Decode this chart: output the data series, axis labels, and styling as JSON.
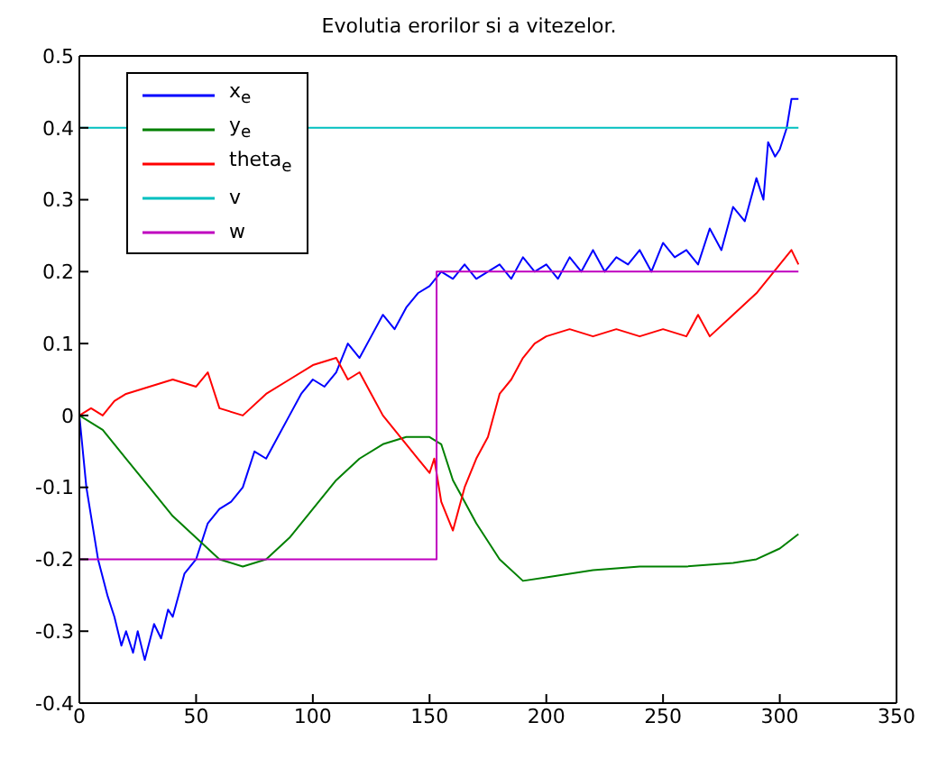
{
  "chart_data": {
    "type": "line",
    "title": "Evolutia erorilor si a vitezelor.",
    "xlim": [
      0,
      350
    ],
    "xticks": [
      0,
      50,
      100,
      150,
      200,
      250,
      300,
      350
    ],
    "ylim": [
      -0.4,
      0.5
    ],
    "yticks": [
      -0.4,
      -0.3,
      -0.2,
      -0.1,
      0,
      0.1,
      0.2,
      0.3,
      0.4,
      0.5
    ],
    "legend": "top left",
    "marker": "none",
    "line_style": "solid",
    "series": [
      {
        "name": "x$_{e}$",
        "color": "#0000ff",
        "x": [
          0,
          3,
          8,
          12,
          15,
          18,
          20,
          23,
          25,
          28,
          32,
          35,
          38,
          40,
          45,
          50,
          55,
          60,
          65,
          70,
          75,
          80,
          85,
          90,
          95,
          100,
          105,
          110,
          115,
          120,
          125,
          130,
          135,
          140,
          145,
          150,
          155,
          160,
          165,
          170,
          175,
          180,
          185,
          190,
          195,
          200,
          205,
          210,
          215,
          220,
          225,
          230,
          235,
          240,
          245,
          250,
          255,
          260,
          265,
          270,
          275,
          280,
          285,
          290,
          293,
          295,
          298,
          300,
          303,
          305,
          308
        ],
        "values": [
          0,
          -0.1,
          -0.2,
          -0.25,
          -0.28,
          -0.32,
          -0.3,
          -0.33,
          -0.3,
          -0.34,
          -0.29,
          -0.31,
          -0.27,
          -0.28,
          -0.22,
          -0.2,
          -0.15,
          -0.13,
          -0.12,
          -0.1,
          -0.05,
          -0.06,
          -0.03,
          0,
          0.03,
          0.05,
          0.04,
          0.06,
          0.1,
          0.08,
          0.11,
          0.14,
          0.12,
          0.15,
          0.17,
          0.18,
          0.2,
          0.19,
          0.21,
          0.19,
          0.2,
          0.21,
          0.19,
          0.22,
          0.2,
          0.21,
          0.19,
          0.22,
          0.2,
          0.23,
          0.2,
          0.22,
          0.21,
          0.23,
          0.2,
          0.24,
          0.22,
          0.23,
          0.21,
          0.26,
          0.23,
          0.29,
          0.27,
          0.33,
          0.3,
          0.38,
          0.36,
          0.37,
          0.4,
          0.44,
          0.44
        ]
      },
      {
        "name": "y$_{e}$",
        "color": "#008000",
        "x": [
          0,
          10,
          20,
          30,
          40,
          50,
          60,
          70,
          80,
          90,
          100,
          110,
          120,
          130,
          140,
          150,
          155,
          160,
          170,
          180,
          190,
          200,
          220,
          240,
          260,
          280,
          290,
          300,
          308
        ],
        "values": [
          0,
          -0.02,
          -0.06,
          -0.1,
          -0.14,
          -0.17,
          -0.2,
          -0.21,
          -0.2,
          -0.17,
          -0.13,
          -0.09,
          -0.06,
          -0.04,
          -0.03,
          -0.03,
          -0.04,
          -0.09,
          -0.15,
          -0.2,
          -0.23,
          -0.225,
          -0.215,
          -0.21,
          -0.21,
          -0.205,
          -0.2,
          -0.185,
          -0.165
        ]
      },
      {
        "name": "theta$_{e}$",
        "color": "#ff0000",
        "x": [
          0,
          5,
          10,
          15,
          20,
          30,
          40,
          50,
          55,
          60,
          70,
          80,
          90,
          100,
          110,
          115,
          120,
          125,
          130,
          140,
          145,
          150,
          152,
          155,
          160,
          165,
          170,
          175,
          180,
          185,
          190,
          195,
          200,
          210,
          220,
          230,
          240,
          250,
          260,
          265,
          270,
          280,
          290,
          300,
          305,
          308
        ],
        "values": [
          0,
          0.01,
          0,
          0.02,
          0.03,
          0.04,
          0.05,
          0.04,
          0.06,
          0.01,
          0,
          0.03,
          0.05,
          0.07,
          0.08,
          0.05,
          0.06,
          0.03,
          0,
          -0.04,
          -0.06,
          -0.08,
          -0.06,
          -0.12,
          -0.16,
          -0.1,
          -0.06,
          -0.03,
          0.03,
          0.05,
          0.08,
          0.1,
          0.11,
          0.12,
          0.11,
          0.12,
          0.11,
          0.12,
          0.11,
          0.14,
          0.11,
          0.14,
          0.17,
          0.21,
          0.23,
          0.21
        ]
      },
      {
        "name": "v",
        "color": "#00bfbf",
        "x": [
          0,
          308
        ],
        "values": [
          0.4,
          0.4
        ]
      },
      {
        "name": "w",
        "color": "#bf00bf",
        "x": [
          0,
          153,
          153,
          308
        ],
        "values": [
          -0.2,
          -0.2,
          0.2,
          0.2
        ]
      }
    ]
  }
}
